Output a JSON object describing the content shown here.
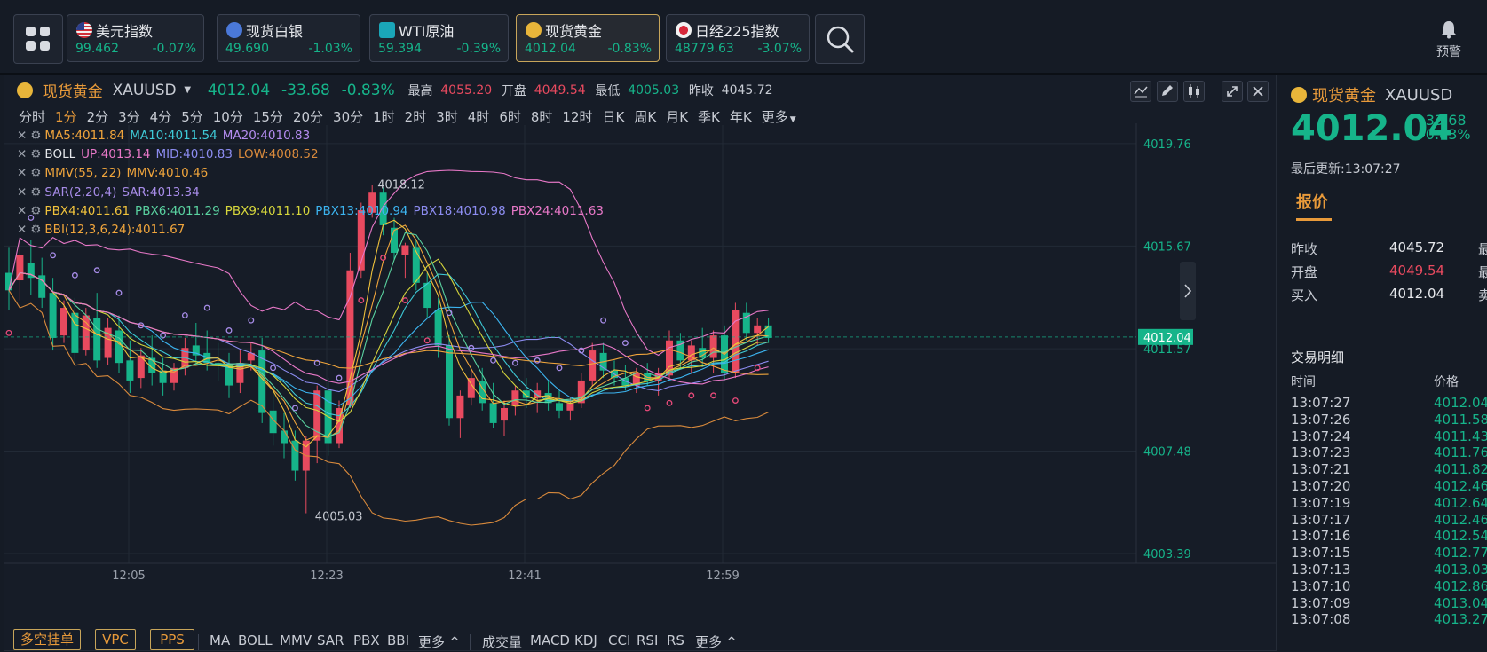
{
  "tickers": [
    {
      "name": "美元指数",
      "price": "99.462",
      "pct": "-0.07%"
    },
    {
      "name": "现货白银",
      "price": "49.690",
      "pct": "-1.03%"
    },
    {
      "name": "WTI原油",
      "price": "59.394",
      "pct": "-0.39%"
    },
    {
      "name": "现货黄金",
      "price": "4012.04",
      "pct": "-0.83%"
    },
    {
      "name": "日经225指数",
      "price": "48779.63",
      "pct": "-3.07%"
    }
  ],
  "alert_label": "预警",
  "header": {
    "name": "现货黄金",
    "symbol": "XAUUSD",
    "price": "4012.04",
    "change": "-33.68",
    "pct": "-0.83%",
    "high_label": "最高",
    "high": "4055.20",
    "open_label": "开盘",
    "open": "4049.54",
    "low_label": "最低",
    "low": "4005.03",
    "prev_label": "昨收",
    "prev": "4045.72"
  },
  "periods": [
    "分时",
    "1分",
    "2分",
    "3分",
    "4分",
    "5分",
    "10分",
    "15分",
    "20分",
    "30分",
    "1时",
    "2时",
    "3时",
    "4时",
    "6时",
    "8时",
    "12时",
    "日K",
    "周K",
    "月K",
    "季K",
    "年K",
    "更多"
  ],
  "legend": [
    [
      {
        "t": "MA5:4011.84",
        "c": "#f0a53c"
      },
      {
        "t": "MA10:4011.54",
        "c": "#3ec9d6"
      },
      {
        "t": "MA20:4010.83",
        "c": "#b48cf0"
      }
    ],
    [
      {
        "t": "BOLL",
        "c": "#e6e8ec"
      },
      {
        "t": "UP:4013.14",
        "c": "#e878c8"
      },
      {
        "t": "MID:4010.83",
        "c": "#8c8cf0"
      },
      {
        "t": "LOW:4008.52",
        "c": "#d98a3c"
      }
    ],
    [
      {
        "t": "MMV(55, 22)",
        "c": "#f0a53c"
      },
      {
        "t": "MMV:4010.46",
        "c": "#f0a53c"
      }
    ],
    [
      {
        "t": "SAR(2,20,4)",
        "c": "#a78ce8"
      },
      {
        "t": "SAR:4013.34",
        "c": "#a78ce8"
      }
    ],
    [
      {
        "t": "PBX4:4011.61",
        "c": "#f0c23c"
      },
      {
        "t": "PBX6:4011.29",
        "c": "#5ad2a0"
      },
      {
        "t": "PBX9:4011.10",
        "c": "#d6d63c"
      },
      {
        "t": "PBX13:4010.94",
        "c": "#3cb4f0"
      },
      {
        "t": "PBX18:4010.98",
        "c": "#8c8cf0"
      },
      {
        "t": "PBX24:4011.63",
        "c": "#e878c8"
      }
    ],
    [
      {
        "t": "BBI(12,3,6,24):4011.67",
        "c": "#f0a53c"
      }
    ]
  ],
  "chart_data": {
    "type": "candlestick",
    "ylim": [
      4003.0,
      4020.5
    ],
    "y_ticks": [
      "4019.76",
      "4015.67",
      "4011.57",
      "4007.48",
      "4003.39"
    ],
    "x_ticks": [
      "12:05",
      "12:23",
      "12:41",
      "12:59"
    ],
    "last_price": "4012.04",
    "max_label": "4018.12",
    "min_label": "4005.03",
    "candles": [
      [
        4014.6,
        4015.6,
        4013.1,
        4013.9
      ],
      [
        4014.3,
        4016.0,
        4013.5,
        4015.3
      ],
      [
        4015.0,
        4015.9,
        4013.7,
        4014.4
      ],
      [
        4014.5,
        4015.2,
        4013.2,
        4013.6
      ],
      [
        4013.8,
        4014.4,
        4011.5,
        4012.0
      ],
      [
        4012.1,
        4013.5,
        4011.8,
        4013.2
      ],
      [
        4013.0,
        4013.6,
        4010.9,
        4011.4
      ],
      [
        4011.5,
        4013.2,
        4011.3,
        4012.9
      ],
      [
        4012.8,
        4013.8,
        4010.8,
        4011.1
      ],
      [
        4011.2,
        4012.8,
        4010.9,
        4012.4
      ],
      [
        4012.3,
        4012.9,
        4010.6,
        4011.0
      ],
      [
        4011.1,
        4011.9,
        4009.8,
        4010.3
      ],
      [
        4010.4,
        4011.6,
        4010.0,
        4011.3
      ],
      [
        4011.2,
        4012.1,
        4010.1,
        4010.6
      ],
      [
        4010.7,
        4011.2,
        4009.7,
        4010.2
      ],
      [
        4010.2,
        4011.0,
        4009.9,
        4010.8
      ],
      [
        4010.8,
        4012.0,
        4010.5,
        4011.6
      ],
      [
        4011.7,
        4012.6,
        4010.9,
        4011.3
      ],
      [
        4011.4,
        4012.3,
        4010.7,
        4011.0
      ],
      [
        4011.0,
        4011.8,
        4010.3,
        4010.9
      ],
      [
        4010.9,
        4011.4,
        4009.6,
        4010.1
      ],
      [
        4010.2,
        4011.5,
        4009.8,
        4011.0
      ],
      [
        4011.1,
        4011.8,
        4010.7,
        4011.4
      ],
      [
        4011.5,
        4012.0,
        4008.6,
        4009.0
      ],
      [
        4009.1,
        4009.9,
        4007.7,
        4008.2
      ],
      [
        4008.3,
        4009.0,
        4007.2,
        4007.8
      ],
      [
        4007.9,
        4008.3,
        4006.3,
        4006.7
      ],
      [
        4006.7,
        4008.1,
        4005.0,
        4007.9
      ],
      [
        4007.9,
        4010.1,
        4007.0,
        4009.9
      ],
      [
        4009.9,
        4010.4,
        4007.3,
        4007.8
      ],
      [
        4007.8,
        4009.5,
        4007.6,
        4009.2
      ],
      [
        4009.3,
        4015.4,
        4009.2,
        4014.7
      ],
      [
        4014.7,
        4017.4,
        4014.4,
        4017.1
      ],
      [
        4017.0,
        4018.1,
        4016.8,
        4017.8
      ],
      [
        4017.8,
        4018.0,
        4016.1,
        4016.5
      ],
      [
        4016.4,
        4016.8,
        4015.1,
        4015.4
      ],
      [
        4015.3,
        4015.8,
        4014.4,
        4015.7
      ],
      [
        4015.6,
        4015.9,
        4013.9,
        4014.2
      ],
      [
        4014.2,
        4014.6,
        4012.8,
        4013.2
      ],
      [
        4013.1,
        4013.6,
        4011.2,
        4011.7
      ],
      [
        4011.7,
        4012.1,
        4008.5,
        4008.8
      ],
      [
        4008.8,
        4009.9,
        4008.0,
        4009.7
      ],
      [
        4009.6,
        4010.7,
        4009.3,
        4010.4
      ],
      [
        4010.3,
        4010.8,
        4009.1,
        4009.4
      ],
      [
        4009.4,
        4010.2,
        4008.4,
        4008.6
      ],
      [
        4008.7,
        4009.5,
        4008.1,
        4009.2
      ],
      [
        4009.3,
        4010.1,
        4008.9,
        4009.9
      ],
      [
        4009.9,
        4010.4,
        4009.2,
        4009.6
      ],
      [
        4009.6,
        4010.2,
        4009.0,
        4009.9
      ],
      [
        4009.8,
        4010.3,
        4009.1,
        4009.4
      ],
      [
        4009.4,
        4009.9,
        4008.8,
        4009.1
      ],
      [
        4009.1,
        4009.6,
        4008.7,
        4009.4
      ],
      [
        4009.4,
        4010.6,
        4009.2,
        4010.3
      ],
      [
        4010.3,
        4011.8,
        4010.1,
        4011.5
      ],
      [
        4011.4,
        4011.8,
        4010.4,
        4010.7
      ],
      [
        4010.7,
        4011.1,
        4010.1,
        4010.4
      ],
      [
        4010.4,
        4010.9,
        4009.9,
        4010.1
      ],
      [
        4010.1,
        4010.8,
        4009.8,
        4010.6
      ],
      [
        4010.6,
        4011.0,
        4010.1,
        4010.3
      ],
      [
        4010.3,
        4010.8,
        4009.7,
        4010.6
      ],
      [
        4010.5,
        4012.3,
        4010.3,
        4011.9
      ],
      [
        4011.9,
        4012.2,
        4010.8,
        4011.1
      ],
      [
        4011.1,
        4011.9,
        4010.6,
        4011.7
      ],
      [
        4011.6,
        4012.4,
        4010.9,
        4011.2
      ],
      [
        4011.2,
        4012.3,
        4010.6,
        4012.1
      ],
      [
        4012.1,
        4012.5,
        4010.3,
        4010.6
      ],
      [
        4010.6,
        4013.4,
        4010.4,
        4013.1
      ],
      [
        4013.0,
        4013.4,
        4011.9,
        4012.2
      ],
      [
        4012.2,
        4012.8,
        4011.7,
        4012.5
      ],
      [
        4012.5,
        4012.8,
        4011.8,
        4012.0
      ]
    ]
  },
  "bottombar": {
    "buttons": [
      "多空挂单",
      "VPC",
      "PPS"
    ],
    "indicators": [
      "MA",
      "BOLL",
      "MMV",
      "SAR",
      "PBX",
      "BBI",
      "更多 ^"
    ],
    "sub": [
      "成交量",
      "MACD",
      "KDJ",
      "CCI",
      "RSI",
      "RS",
      "更多 ^"
    ]
  },
  "sidebar": {
    "name": "现货黄金",
    "symbol": "XAUUSD",
    "price": "4012.04",
    "change": "-33.68",
    "pct": "-0.83%",
    "updated": "最后更新:13:07:27",
    "tab": "报价",
    "quote": [
      {
        "label": "昨收",
        "value": "4045.72",
        "color": "#e6e8ec"
      },
      {
        "label": "开盘",
        "value": "4049.54",
        "color": "#e84a5f"
      },
      {
        "label": "买入",
        "value": "4012.04",
        "color": "#e6e8ec"
      }
    ],
    "cut_labels": [
      "最",
      "最",
      "卖"
    ],
    "trades_title": "交易明细",
    "col_time": "时间",
    "col_price": "价格",
    "trades": [
      [
        "13:07:27",
        "4012.04"
      ],
      [
        "13:07:26",
        "4011.58"
      ],
      [
        "13:07:24",
        "4011.43"
      ],
      [
        "13:07:23",
        "4011.76"
      ],
      [
        "13:07:21",
        "4011.82"
      ],
      [
        "13:07:20",
        "4012.46"
      ],
      [
        "13:07:19",
        "4012.64"
      ],
      [
        "13:07:17",
        "4012.46"
      ],
      [
        "13:07:16",
        "4012.54"
      ],
      [
        "13:07:15",
        "4012.77"
      ],
      [
        "13:07:13",
        "4013.03"
      ],
      [
        "13:07:10",
        "4012.86"
      ],
      [
        "13:07:09",
        "4013.04"
      ],
      [
        "13:07:08",
        "4013.27"
      ]
    ]
  },
  "colors": {
    "up": "#e84a5f",
    "down": "#16b48a",
    "accent": "#e89a3a",
    "bg": "#161c27"
  }
}
